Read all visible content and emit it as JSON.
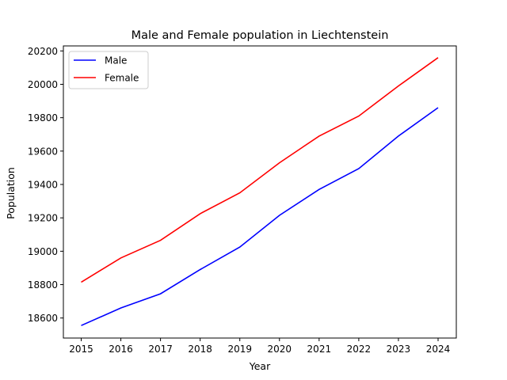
{
  "chart_data": {
    "type": "line",
    "title": "Male and Female population in Liechtenstein",
    "xlabel": "Year",
    "ylabel": "Population",
    "x": [
      2015,
      2016,
      2017,
      2018,
      2019,
      2020,
      2021,
      2022,
      2023,
      2024
    ],
    "ylim": [
      18480,
      20230
    ],
    "yticks": [
      18600,
      18800,
      19000,
      19200,
      19400,
      19600,
      19800,
      20000,
      20200
    ],
    "grid": false,
    "legend_position": "top-left",
    "series": [
      {
        "name": "Male",
        "color": "#0000ff",
        "values": [
          18555,
          18660,
          18745,
          18890,
          19025,
          19215,
          19370,
          19495,
          19690,
          19860
        ]
      },
      {
        "name": "Female",
        "color": "#ff0000",
        "values": [
          18815,
          18960,
          19065,
          19225,
          19350,
          19530,
          19690,
          19810,
          19990,
          20160
        ]
      }
    ]
  }
}
